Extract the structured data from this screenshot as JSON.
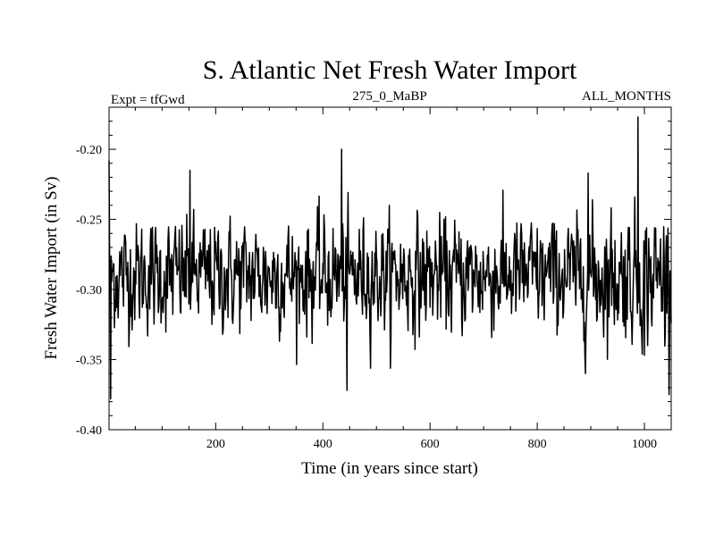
{
  "chart_data": {
    "type": "line",
    "title": "S. Atlantic Net Fresh Water Import",
    "subtitle_left": "Expt = tfGwd",
    "subtitle_center": "275_0_MaBP",
    "subtitle_right": "ALL_MONTHS",
    "xlabel": "Time (in years since start)",
    "ylabel": "Fresh Water Import (in Sv)",
    "xlim": [
      1,
      1050
    ],
    "ylim": [
      -0.4,
      -0.17
    ],
    "x_ticks": [
      200,
      400,
      600,
      800,
      1000
    ],
    "x_tick_labels": [
      "200",
      "400",
      "600",
      "800",
      "1000"
    ],
    "y_ticks": [
      -0.4,
      -0.35,
      -0.3,
      -0.25,
      -0.2
    ],
    "y_tick_labels": [
      "-0.40",
      "-0.35",
      "-0.30",
      "-0.25",
      "-0.20"
    ],
    "series": [
      {
        "name": "S. Atlantic Net Fresh Water Import",
        "color": "#000000",
        "x_start": 1,
        "x_step": 1,
        "count": 1050,
        "mean": -0.29,
        "std": 0.02,
        "features": [
          {
            "x": 1,
            "y": -0.208
          },
          {
            "x": 4,
            "y": -0.378
          },
          {
            "x": 152,
            "y": -0.215
          },
          {
            "x": 435,
            "y": -0.2
          },
          {
            "x": 445,
            "y": -0.372
          },
          {
            "x": 895,
            "y": -0.217
          },
          {
            "x": 988,
            "y": -0.177
          },
          {
            "x": 1000,
            "y": -0.347
          }
        ]
      }
    ]
  }
}
